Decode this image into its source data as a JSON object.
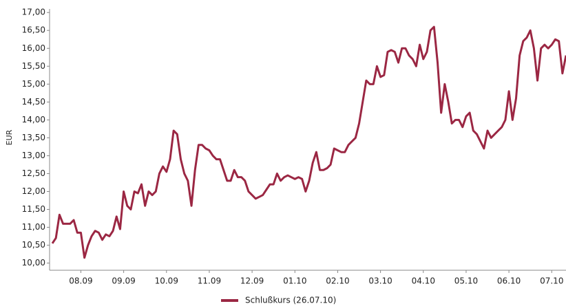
{
  "chart_data": {
    "type": "line",
    "y_label": "EUR",
    "categories": [
      null,
      null,
      null,
      null,
      null,
      null,
      null,
      null,
      "08.09",
      null,
      null,
      null,
      null,
      null,
      null,
      null,
      null,
      null,
      null,
      null,
      "09.09",
      null,
      null,
      null,
      null,
      null,
      null,
      null,
      null,
      null,
      null,
      null,
      "10.09",
      null,
      null,
      null,
      null,
      null,
      null,
      null,
      null,
      null,
      null,
      null,
      "11.09",
      null,
      null,
      null,
      null,
      null,
      null,
      null,
      null,
      null,
      null,
      null,
      "12.09",
      null,
      null,
      null,
      null,
      null,
      null,
      null,
      null,
      null,
      null,
      null,
      "01.10",
      null,
      null,
      null,
      null,
      null,
      null,
      null,
      null,
      null,
      null,
      null,
      "02.10",
      null,
      null,
      null,
      null,
      null,
      null,
      null,
      null,
      null,
      null,
      null,
      "03.10",
      null,
      null,
      null,
      null,
      null,
      null,
      null,
      null,
      null,
      null,
      null,
      "04.10",
      null,
      null,
      null,
      null,
      null,
      null,
      null,
      null,
      null,
      null,
      null,
      "05.10",
      null,
      null,
      null,
      null,
      null,
      null,
      null,
      null,
      null,
      null,
      null,
      "06.10",
      null,
      null,
      null,
      null,
      null,
      null,
      null,
      null,
      null,
      null,
      null,
      "07.10",
      null,
      null,
      null,
      null
    ],
    "series": [
      {
        "name": "Schlußkurs (26.07.10)",
        "color": "#9b2743",
        "values": [
          10.55,
          10.7,
          11.35,
          11.1,
          11.1,
          11.1,
          11.2,
          10.85,
          10.85,
          10.15,
          10.5,
          10.75,
          10.9,
          10.85,
          10.65,
          10.8,
          10.75,
          10.9,
          11.3,
          10.95,
          12.0,
          11.6,
          11.5,
          12.0,
          11.95,
          12.2,
          11.6,
          12.0,
          11.9,
          12.0,
          12.5,
          12.7,
          12.55,
          12.9,
          13.7,
          13.6,
          12.9,
          12.5,
          12.3,
          11.6,
          12.6,
          13.3,
          13.3,
          13.2,
          13.15,
          13.0,
          12.9,
          12.9,
          12.6,
          12.3,
          12.3,
          12.6,
          12.4,
          12.4,
          12.3,
          12.0,
          11.9,
          11.8,
          11.85,
          11.9,
          12.05,
          12.2,
          12.2,
          12.5,
          12.3,
          12.4,
          12.45,
          12.4,
          12.35,
          12.4,
          12.35,
          12.0,
          12.3,
          12.8,
          13.1,
          12.6,
          12.6,
          12.65,
          12.75,
          13.2,
          13.15,
          13.1,
          13.1,
          13.3,
          13.4,
          13.5,
          13.9,
          14.5,
          15.1,
          15.0,
          15.0,
          15.5,
          15.2,
          15.25,
          15.9,
          15.95,
          15.9,
          15.6,
          16.0,
          16.0,
          15.8,
          15.7,
          15.5,
          16.1,
          15.7,
          15.9,
          16.5,
          16.6,
          15.6,
          14.2,
          15.0,
          14.5,
          13.9,
          14.0,
          14.0,
          13.8,
          14.1,
          14.2,
          13.7,
          13.6,
          13.4,
          13.2,
          13.7,
          13.5,
          13.6,
          13.7,
          13.8,
          14.0,
          14.8,
          14.0,
          14.6,
          15.8,
          16.2,
          16.3,
          16.5,
          16.0,
          15.1,
          16.0,
          16.1,
          16.0,
          16.1,
          16.25,
          16.2,
          15.3,
          15.8
        ]
      }
    ],
    "ylim": [
      9.8,
      17.1
    ],
    "yticks": [
      {
        "value": 10,
        "label": "10,00"
      },
      {
        "value": 10.5,
        "label": "10,50"
      },
      {
        "value": 11,
        "label": "11,00"
      },
      {
        "value": 11.5,
        "label": "11,50"
      },
      {
        "value": 12,
        "label": "12,00"
      },
      {
        "value": 12.5,
        "label": "12,50"
      },
      {
        "value": 13,
        "label": "13,00"
      },
      {
        "value": 13.5,
        "label": "13,50"
      },
      {
        "value": 14,
        "label": "14,00"
      },
      {
        "value": 14.5,
        "label": "14,50"
      },
      {
        "value": 15,
        "label": "15,00"
      },
      {
        "value": 15.5,
        "label": "15,50"
      },
      {
        "value": 16,
        "label": "16,00"
      },
      {
        "value": 16.5,
        "label": "16,50"
      },
      {
        "value": 17,
        "label": "17,00"
      }
    ],
    "grid": false
  }
}
